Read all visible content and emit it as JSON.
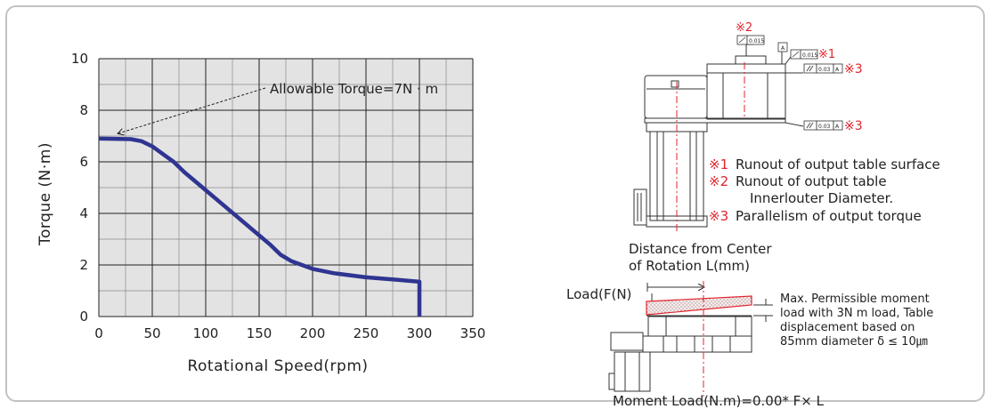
{
  "colors": {
    "curve": "#2f3591",
    "plot_bg": "#e3e3e3",
    "grid": "#222222",
    "accent_red": "#e0242b"
  },
  "chart_data": {
    "type": "line",
    "title": "",
    "xlabel": "Rotational Speed(rpm)",
    "ylabel": "Torque (N·m)",
    "xlim": [
      0,
      350
    ],
    "ylim": [
      0,
      10
    ],
    "xticks": [
      "0",
      "50",
      "100",
      "150",
      "200",
      "250",
      "300",
      "350"
    ],
    "yticks": [
      "0",
      "2",
      "4",
      "6",
      "8",
      "10"
    ],
    "grid": "on",
    "series": [
      {
        "x": [
          0,
          30,
          40,
          50,
          60,
          70,
          80,
          100,
          120,
          140,
          160,
          170,
          180,
          200,
          220,
          250,
          280,
          300,
          300
        ],
        "y": [
          6.9,
          6.88,
          6.8,
          6.6,
          6.3,
          6.0,
          5.6,
          4.9,
          4.2,
          3.5,
          2.8,
          2.4,
          2.15,
          1.85,
          1.68,
          1.52,
          1.42,
          1.35,
          0
        ]
      }
    ],
    "annotations": [
      {
        "text": "Allowable Torque=7N · m",
        "x": 5,
        "y": 7.0
      }
    ]
  },
  "diagram": {
    "marks": {
      "m1": "※1",
      "m2": "※2",
      "m3a": "※3",
      "m3b": "※3"
    },
    "boxes": {
      "a": "A",
      "runout1": "0.015",
      "runout2": "0.015",
      "par1_val": "0.03",
      "par1_ref": "A",
      "par2_val": "0.03",
      "par2_ref": "A"
    },
    "legend": {
      "l1_mark": "※1",
      "l1_text": "Runout of output table surface",
      "l2_mark": "※2",
      "l2_text": "Runout of output table",
      "l2_text2": "Innerlouter Diameter.",
      "l3_mark": "※3",
      "l3_text": "Parallelism of output torque"
    },
    "distance_label_1": "Distance from Center",
    "distance_label_2": "of Rotation L(mm)",
    "load_label": "Load(F(N)",
    "moment_note": [
      "Max. Permissible moment",
      "load with 3N m load, Table",
      "displacement based on",
      "85mm diameter δ ≤ 10㎛"
    ],
    "formula": "Moment Load(N.m)=0.00* F× L"
  }
}
